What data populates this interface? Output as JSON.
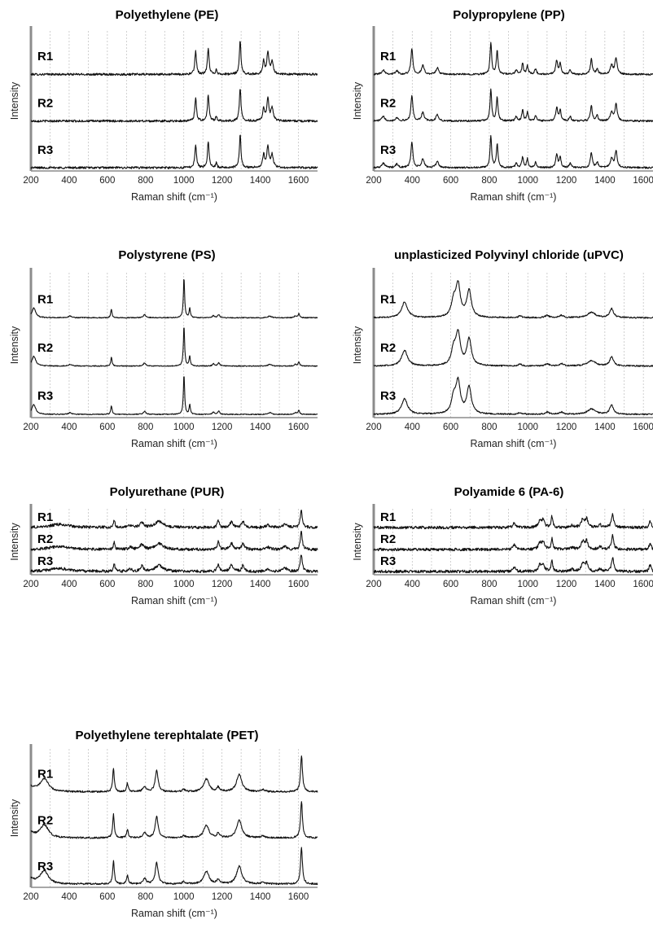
{
  "chart_data": [
    {
      "type": "line",
      "title": "Polyethylene (PE)",
      "xlabel": "Raman shift (cm⁻¹)",
      "ylabel": "Intensity",
      "xlim": [
        200,
        1700
      ],
      "xticks": [
        200,
        400,
        600,
        800,
        1000,
        1200,
        1400,
        1600
      ],
      "grid": "vertical dashed every 100",
      "series": [
        {
          "name": "R1"
        },
        {
          "name": "R2"
        },
        {
          "name": "R3"
        }
      ],
      "peaks": [
        [
          1062,
          0.55,
          5
        ],
        [
          1128,
          0.62,
          5
        ],
        [
          1170,
          0.12,
          4
        ],
        [
          1295,
          0.78,
          5
        ],
        [
          1418,
          0.3,
          6
        ],
        [
          1440,
          0.5,
          6
        ],
        [
          1462,
          0.3,
          7
        ]
      ],
      "noise": 0.025,
      "baseline": {
        "type": "flat"
      }
    },
    {
      "type": "line",
      "title": "Polypropylene (PP)",
      "xlabel": "Raman shift (cm⁻¹)",
      "ylabel": "Intensity",
      "xlim": [
        200,
        1650
      ],
      "xticks": [
        200,
        400,
        600,
        800,
        1000,
        1200,
        1400,
        1600
      ],
      "grid": "vertical dashed every 100",
      "series": [
        {
          "name": "R1"
        },
        {
          "name": "R2"
        },
        {
          "name": "R3"
        }
      ],
      "peaks": [
        [
          250,
          0.1,
          10
        ],
        [
          320,
          0.08,
          8
        ],
        [
          398,
          0.6,
          6
        ],
        [
          455,
          0.2,
          8
        ],
        [
          530,
          0.15,
          8
        ],
        [
          808,
          0.75,
          5
        ],
        [
          841,
          0.55,
          5
        ],
        [
          940,
          0.1,
          6
        ],
        [
          973,
          0.25,
          5
        ],
        [
          998,
          0.2,
          5
        ],
        [
          1040,
          0.12,
          6
        ],
        [
          1150,
          0.32,
          6
        ],
        [
          1168,
          0.25,
          5
        ],
        [
          1220,
          0.1,
          6
        ],
        [
          1330,
          0.35,
          6
        ],
        [
          1360,
          0.12,
          6
        ],
        [
          1435,
          0.2,
          8
        ],
        [
          1458,
          0.38,
          7
        ]
      ],
      "noise": 0.02,
      "baseline": {
        "type": "flat"
      }
    },
    {
      "type": "line",
      "title": "Polystyrene (PS)",
      "xlabel": "Raman shift (cm⁻¹)",
      "ylabel": "Intensity",
      "xlim": [
        200,
        1700
      ],
      "xticks": [
        200,
        400,
        600,
        800,
        1000,
        1200,
        1400,
        1600
      ],
      "grid": "vertical dashed every 100",
      "series": [
        {
          "name": "R1"
        },
        {
          "name": "R2"
        },
        {
          "name": "R3"
        }
      ],
      "peaks": [
        [
          215,
          0.22,
          12
        ],
        [
          405,
          0.04,
          10
        ],
        [
          621,
          0.2,
          4
        ],
        [
          795,
          0.07,
          8
        ],
        [
          1001,
          0.9,
          4
        ],
        [
          1031,
          0.22,
          4
        ],
        [
          1155,
          0.05,
          6
        ],
        [
          1183,
          0.07,
          6
        ],
        [
          1450,
          0.04,
          10
        ],
        [
          1583,
          0.04,
          6
        ],
        [
          1602,
          0.09,
          5
        ]
      ],
      "noise": 0.01,
      "baseline": {
        "type": "flat"
      }
    },
    {
      "type": "line",
      "title": "unplasticized Polyvinyl chloride (uPVC)",
      "xlabel": "Raman shift (cm⁻¹)",
      "ylabel": "Intensity",
      "xlim": [
        200,
        1650
      ],
      "xticks": [
        200,
        400,
        600,
        800,
        1000,
        1200,
        1400,
        1600
      ],
      "grid": "vertical dashed every 100",
      "series": [
        {
          "name": "R1"
        },
        {
          "name": "R2"
        },
        {
          "name": "R3"
        }
      ],
      "peaks": [
        [
          360,
          0.35,
          18
        ],
        [
          615,
          0.35,
          14
        ],
        [
          638,
          0.7,
          14
        ],
        [
          695,
          0.6,
          14
        ],
        [
          960,
          0.04,
          10
        ],
        [
          1100,
          0.05,
          12
        ],
        [
          1175,
          0.05,
          12
        ],
        [
          1330,
          0.12,
          25
        ],
        [
          1435,
          0.2,
          12
        ]
      ],
      "noise": 0.015,
      "baseline": {
        "type": "flat"
      }
    },
    {
      "type": "line",
      "title": "Polyurethane (PUR)",
      "xlabel": "Raman shift (cm⁻¹)",
      "ylabel": "Intensity",
      "xlim": [
        200,
        1700
      ],
      "xticks": [
        200,
        400,
        600,
        800,
        1000,
        1200,
        1400,
        1600
      ],
      "grid": "vertical dashed every 100",
      "series": [
        {
          "name": "R1"
        },
        {
          "name": "R2"
        },
        {
          "name": "R3"
        }
      ],
      "peaks": [
        [
          350,
          0.15,
          60
        ],
        [
          636,
          0.35,
          5
        ],
        [
          720,
          0.1,
          10
        ],
        [
          780,
          0.25,
          10
        ],
        [
          870,
          0.3,
          25
        ],
        [
          1180,
          0.38,
          6
        ],
        [
          1250,
          0.3,
          10
        ],
        [
          1310,
          0.3,
          8
        ],
        [
          1440,
          0.12,
          12
        ],
        [
          1530,
          0.18,
          10
        ],
        [
          1615,
          0.88,
          6
        ]
      ],
      "noise": 0.07,
      "baseline": {
        "type": "flat"
      }
    },
    {
      "type": "line",
      "title": "Polyamide 6 (PA-6)",
      "xlabel": "Raman shift (cm⁻¹)",
      "ylabel": "Intensity",
      "xlim": [
        200,
        1650
      ],
      "xticks": [
        200,
        400,
        600,
        800,
        1000,
        1200,
        1400,
        1600
      ],
      "grid": "vertical dashed every 100",
      "series": [
        {
          "name": "R1"
        },
        {
          "name": "R2"
        },
        {
          "name": "R3"
        }
      ],
      "peaks": [
        [
          930,
          0.22,
          8
        ],
        [
          1063,
          0.3,
          10
        ],
        [
          1080,
          0.35,
          8
        ],
        [
          1125,
          0.55,
          5
        ],
        [
          1230,
          0.1,
          10
        ],
        [
          1285,
          0.38,
          10
        ],
        [
          1305,
          0.4,
          8
        ],
        [
          1375,
          0.12,
          10
        ],
        [
          1440,
          0.68,
          7
        ],
        [
          1635,
          0.32,
          6
        ]
      ],
      "noise": 0.07,
      "baseline": {
        "type": "flat"
      }
    },
    {
      "type": "line",
      "title": "Polyethylene terephtalate (PET)",
      "xlabel": "Raman shift (cm⁻¹)",
      "ylabel": "Intensity",
      "xlim": [
        200,
        1700
      ],
      "xticks": [
        200,
        400,
        600,
        800,
        1000,
        1200,
        1400,
        1600
      ],
      "grid": "vertical dashed every 100",
      "series": [
        {
          "name": "R1"
        },
        {
          "name": "R2"
        },
        {
          "name": "R3"
        }
      ],
      "peaks": [
        [
          270,
          0.3,
          25
        ],
        [
          632,
          0.55,
          5
        ],
        [
          705,
          0.2,
          5
        ],
        [
          795,
          0.12,
          10
        ],
        [
          858,
          0.5,
          9
        ],
        [
          1000,
          0.05,
          10
        ],
        [
          1118,
          0.3,
          16
        ],
        [
          1180,
          0.1,
          8
        ],
        [
          1290,
          0.42,
          16
        ],
        [
          1415,
          0.05,
          10
        ],
        [
          1616,
          0.85,
          6
        ]
      ],
      "noise": 0.02,
      "baseline": {
        "type": "rise-at-start"
      }
    }
  ]
}
